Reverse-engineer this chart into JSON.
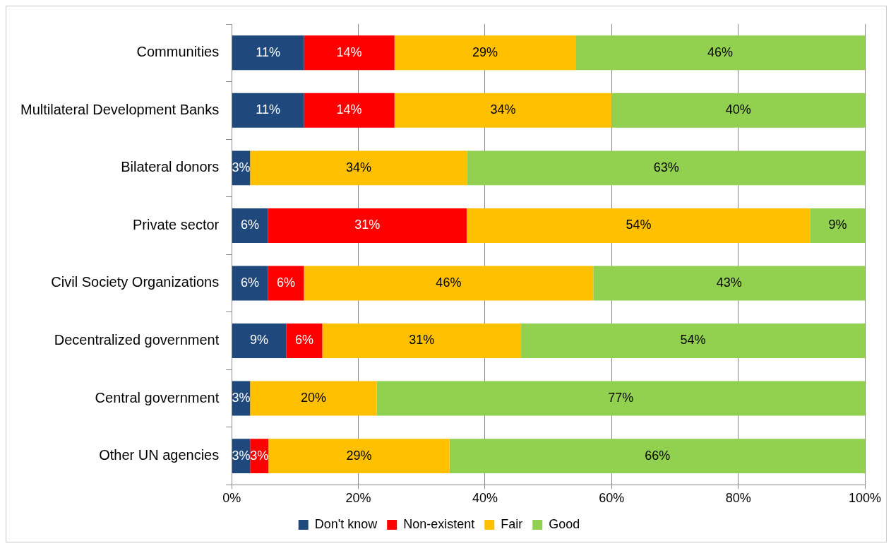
{
  "chart_data": {
    "type": "bar",
    "orientation": "horizontal",
    "stacked": true,
    "categories": [
      "Communities",
      "Multilateral Development Banks",
      "Bilateral donors",
      "Private sector",
      "Civil Society Organizations",
      "Decentralized government",
      "Central government",
      "Other UN agencies"
    ],
    "series": [
      {
        "name": "Don't know",
        "color": "#1f497d",
        "values": [
          11.4,
          11.4,
          2.9,
          5.7,
          5.7,
          8.6,
          2.9,
          2.9
        ],
        "value_labels": [
          "11%",
          "11%",
          "3%",
          "6%",
          "6%",
          "9%",
          "3%",
          "3%"
        ]
      },
      {
        "name": "Non-existent",
        "color": "#ff0000",
        "values": [
          14.3,
          14.3,
          null,
          31.4,
          5.7,
          5.7,
          null,
          2.9
        ],
        "value_labels": [
          "14%",
          "14%",
          null,
          "31%",
          "6%",
          "6%",
          null,
          "3%"
        ]
      },
      {
        "name": "Fair",
        "color": "#ffc000",
        "values": [
          28.6,
          34.3,
          34.3,
          54.3,
          45.7,
          31.4,
          20.0,
          28.6
        ],
        "value_labels": [
          "29%",
          "34%",
          "34%",
          "54%",
          "46%",
          "31%",
          "20%",
          "29%"
        ]
      },
      {
        "name": "Good",
        "color": "#92d050",
        "values": [
          45.7,
          40.0,
          62.9,
          8.6,
          42.9,
          54.3,
          77.1,
          65.7
        ],
        "value_labels": [
          "46%",
          "40%",
          "63%",
          "9%",
          "43%",
          "54%",
          "77%",
          "66%"
        ]
      }
    ],
    "xlim": [
      0,
      100
    ],
    "xticks": [
      {
        "value": 0,
        "label": "0%"
      },
      {
        "value": 20,
        "label": "20%"
      },
      {
        "value": 40,
        "label": "40%"
      },
      {
        "value": 60,
        "label": "60%"
      },
      {
        "value": 80,
        "label": "80%"
      },
      {
        "value": 100,
        "label": "100%"
      }
    ],
    "grid": "x",
    "legend": "bottom"
  }
}
